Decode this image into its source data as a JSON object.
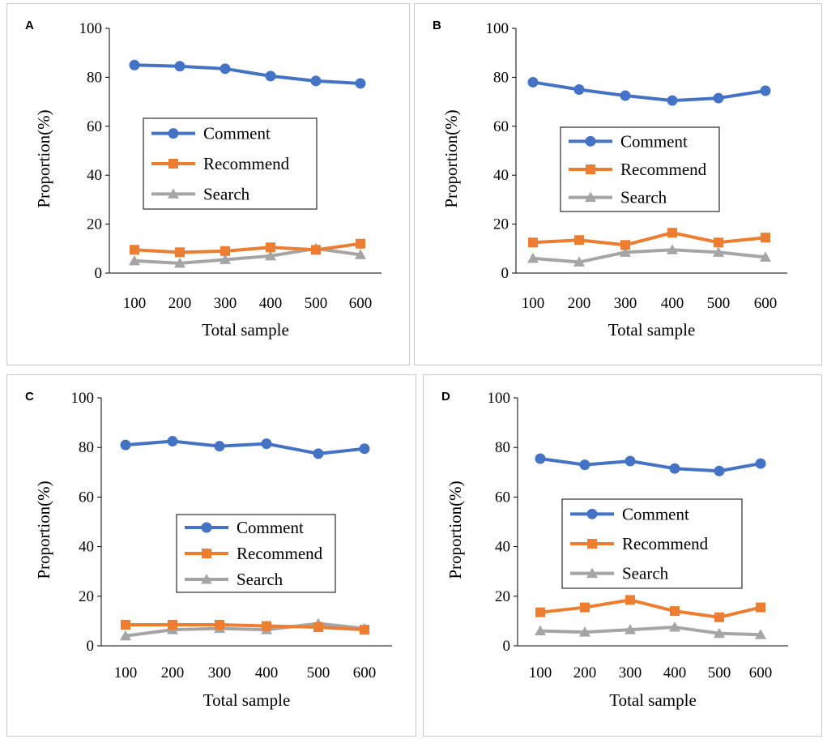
{
  "colors": {
    "Comment": "#4472C4",
    "Recommend": "#ED7D31",
    "Search": "#A5A5A5"
  },
  "chart_data": [
    {
      "type": "line",
      "panel": "A",
      "xlabel": "Total sample",
      "ylabel": "Proportion(%)",
      "categories": [
        "100",
        "200",
        "300",
        "400",
        "500",
        "600"
      ],
      "yticks": [
        "0",
        "20",
        "40",
        "60",
        "80",
        "100"
      ],
      "ylim": [
        0,
        100
      ],
      "series": [
        {
          "name": "Comment",
          "values": [
            85,
            84.5,
            83.5,
            80.5,
            78.5,
            77.5
          ]
        },
        {
          "name": "Recommend",
          "values": [
            9.5,
            8.5,
            9,
            10.5,
            9.5,
            12
          ]
        },
        {
          "name": "Search",
          "values": [
            5,
            4,
            5.5,
            7,
            10,
            7.5
          ]
        }
      ]
    },
    {
      "type": "line",
      "panel": "B",
      "xlabel": "Total sample",
      "ylabel": "Proportion(%)",
      "categories": [
        "100",
        "200",
        "300",
        "400",
        "500",
        "600"
      ],
      "yticks": [
        "0",
        "20",
        "40",
        "60",
        "80",
        "100"
      ],
      "ylim": [
        0,
        100
      ],
      "series": [
        {
          "name": "Comment",
          "values": [
            78,
            75,
            72.5,
            70.5,
            71.5,
            74.5
          ]
        },
        {
          "name": "Recommend",
          "values": [
            12.5,
            13.5,
            11.5,
            16.5,
            12.5,
            14.5
          ]
        },
        {
          "name": "Search",
          "values": [
            6,
            4.5,
            8.5,
            9.5,
            8.5,
            6.5
          ]
        }
      ]
    },
    {
      "type": "line",
      "panel": "C",
      "xlabel": "Total sample",
      "ylabel": "Proportion(%)",
      "categories": [
        "100",
        "200",
        "300",
        "400",
        "500",
        "600"
      ],
      "yticks": [
        "0",
        "20",
        "40",
        "60",
        "80",
        "100"
      ],
      "ylim": [
        0,
        100
      ],
      "series": [
        {
          "name": "Comment",
          "values": [
            81,
            82.5,
            80.5,
            81.5,
            77.5,
            79.5
          ]
        },
        {
          "name": "Recommend",
          "values": [
            8.5,
            8.5,
            8.5,
            8,
            7.5,
            6.5
          ]
        },
        {
          "name": "Search",
          "values": [
            4,
            6.5,
            7,
            6.5,
            9,
            7
          ]
        }
      ]
    },
    {
      "type": "line",
      "panel": "D",
      "xlabel": "Total sample",
      "ylabel": "Proportion(%)",
      "categories": [
        "100",
        "200",
        "300",
        "400",
        "500",
        "600"
      ],
      "yticks": [
        "0",
        "20",
        "40",
        "60",
        "80",
        "100"
      ],
      "ylim": [
        0,
        100
      ],
      "series": [
        {
          "name": "Comment",
          "values": [
            75.5,
            73,
            74.5,
            71.5,
            70.5,
            73.5
          ]
        },
        {
          "name": "Recommend",
          "values": [
            13.5,
            15.5,
            18.5,
            14,
            11.5,
            15.5
          ]
        },
        {
          "name": "Search",
          "values": [
            6,
            5.5,
            6.5,
            7.5,
            5,
            4.5
          ]
        }
      ]
    }
  ]
}
